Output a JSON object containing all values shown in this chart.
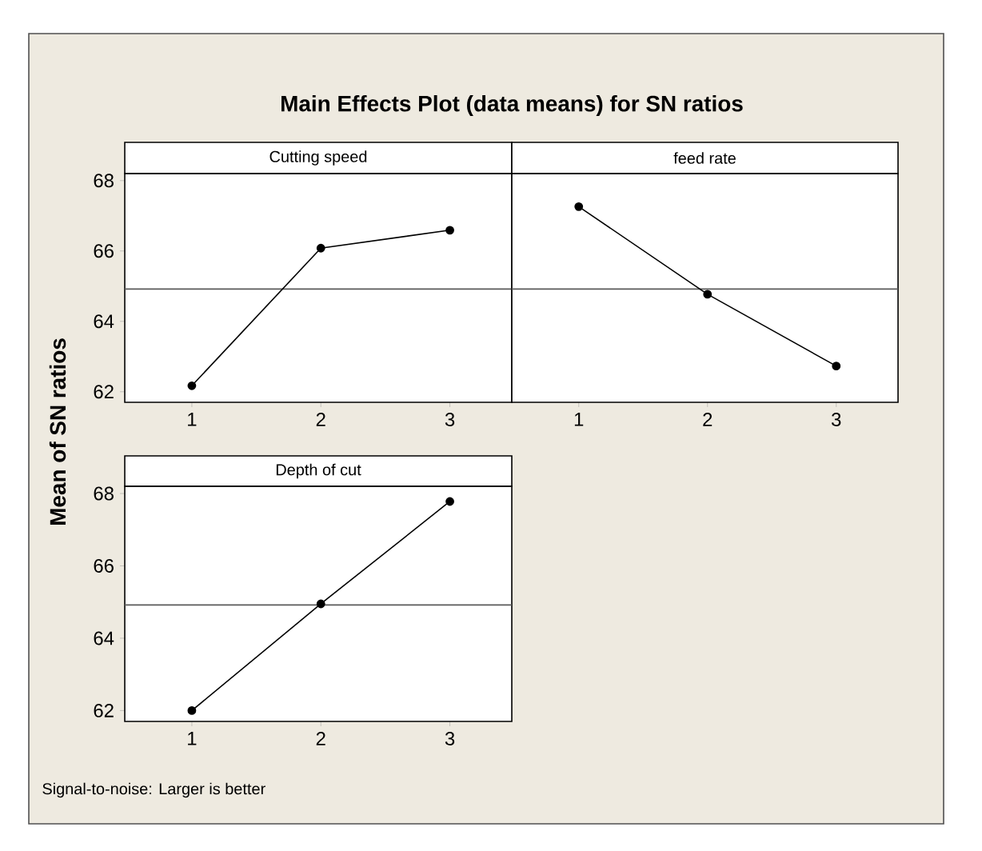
{
  "chart_data": [
    {
      "type": "line",
      "title": "Cutting speed",
      "ylabel": "Mean of SN ratios",
      "annotations": [
        "Main Effects Plot (data means) for SN ratios",
        "Signal-to-noise: Larger is better"
      ],
      "categories": [
        "1",
        "2",
        "3"
      ],
      "series": [
        {
          "color": "#000000",
          "values": [
            62.17,
            66.08,
            66.59
          ]
        }
      ],
      "ylim": [
        61.7,
        68.2
      ],
      "yticks": [
        62,
        64,
        66,
        68
      ],
      "ref_lines": [
        {
          "axis": "y",
          "value": 64.92,
          "color": "#5a5a5a"
        }
      ],
      "marker": "circle",
      "line_style": "solid",
      "grid": false
    },
    {
      "type": "line",
      "title": "feed rate",
      "categories": [
        "1",
        "2",
        "3"
      ],
      "series": [
        {
          "color": "#000000",
          "values": [
            67.26,
            64.77,
            62.73
          ]
        }
      ],
      "ylim": [
        61.7,
        68.2
      ],
      "tick_labels": "x",
      "ref_lines": [
        {
          "axis": "y",
          "value": 64.92,
          "color": "#5a5a5a"
        }
      ],
      "marker": "circle",
      "line_style": "solid",
      "grid": false
    },
    {
      "type": "line",
      "title": "Depth of cut",
      "categories": [
        "1",
        "2",
        "3"
      ],
      "series": [
        {
          "color": "#000000",
          "values": [
            62.0,
            64.95,
            67.78
          ]
        }
      ],
      "ylim": [
        61.7,
        68.2
      ],
      "yticks": [
        62,
        64,
        66,
        68
      ],
      "ref_lines": [
        {
          "axis": "y",
          "value": 64.92,
          "color": "#5a5a5a"
        }
      ],
      "marker": "circle",
      "line_style": "solid",
      "grid": false
    }
  ]
}
